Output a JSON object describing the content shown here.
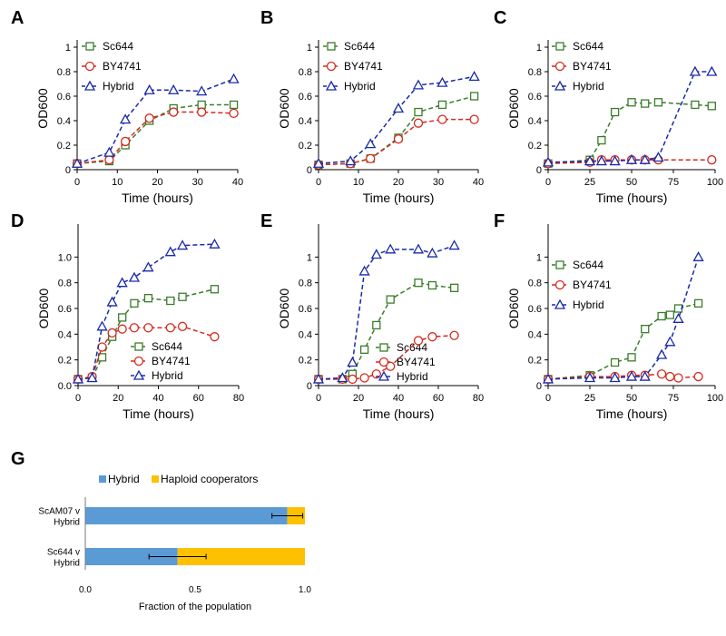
{
  "colors": {
    "Sc644": "#3a7d2a",
    "BY4741": "#d42a1e",
    "Hybrid": "#1a2aa8",
    "bar_hybrid": "#5b9bd5",
    "bar_haploid": "#ffc000"
  },
  "chart_data": [
    {
      "panel": "A",
      "type": "line",
      "xlabel": "Time (hours)",
      "ylabel": "OD600",
      "xlim": [
        0,
        40
      ],
      "xticks": [
        0,
        10,
        20,
        30,
        40
      ],
      "ylim": [
        0,
        1
      ],
      "yticks": [
        "0",
        "0.2",
        "0.4",
        "0.6",
        "0.8",
        "1"
      ],
      "legend_position": "top-left",
      "series": [
        {
          "name": "Sc644",
          "marker": "square",
          "x": [
            0,
            8,
            12,
            18,
            24,
            31,
            39
          ],
          "y": [
            0.05,
            0.07,
            0.2,
            0.4,
            0.5,
            0.53,
            0.53
          ]
        },
        {
          "name": "BY4741",
          "marker": "circle",
          "x": [
            0,
            8,
            12,
            18,
            24,
            31,
            39
          ],
          "y": [
            0.05,
            0.08,
            0.23,
            0.42,
            0.47,
            0.47,
            0.46
          ]
        },
        {
          "name": "Hybrid",
          "marker": "triangle",
          "x": [
            0,
            8,
            12,
            18,
            24,
            31,
            39
          ],
          "y": [
            0.05,
            0.14,
            0.41,
            0.65,
            0.65,
            0.64,
            0.74
          ]
        }
      ]
    },
    {
      "panel": "B",
      "type": "line",
      "xlabel": "Time (hours)",
      "ylabel": "OD600",
      "xlim": [
        0,
        40
      ],
      "xticks": [
        0,
        10,
        20,
        30,
        40
      ],
      "ylim": [
        0,
        1
      ],
      "yticks": [
        "0",
        "0.2",
        "0.4",
        "0.6",
        "0.8",
        "1"
      ],
      "legend_position": "top-left",
      "series": [
        {
          "name": "Sc644",
          "marker": "square",
          "x": [
            0,
            8,
            13,
            20,
            25,
            31,
            39
          ],
          "y": [
            0.04,
            0.05,
            0.09,
            0.26,
            0.47,
            0.53,
            0.6
          ]
        },
        {
          "name": "BY4741",
          "marker": "circle",
          "x": [
            0,
            8,
            13,
            20,
            25,
            31,
            39
          ],
          "y": [
            0.04,
            0.05,
            0.09,
            0.25,
            0.38,
            0.41,
            0.41
          ]
        },
        {
          "name": "Hybrid",
          "marker": "triangle",
          "x": [
            0,
            8,
            13,
            20,
            25,
            31,
            39
          ],
          "y": [
            0.05,
            0.07,
            0.21,
            0.5,
            0.69,
            0.71,
            0.76
          ]
        }
      ]
    },
    {
      "panel": "C",
      "type": "line",
      "xlabel": "Time (hours)",
      "ylabel": "OD600",
      "xlim": [
        0,
        100
      ],
      "xticks": [
        0,
        25,
        50,
        75,
        100
      ],
      "ylim": [
        0,
        1
      ],
      "yticks": [
        "0",
        "0.2",
        "0.4",
        "0.6",
        "0.8",
        "1"
      ],
      "legend_position": "top-left",
      "series": [
        {
          "name": "Sc644",
          "marker": "square",
          "x": [
            0,
            25,
            32,
            40,
            50,
            58,
            66,
            88,
            98
          ],
          "y": [
            0.05,
            0.08,
            0.24,
            0.47,
            0.55,
            0.54,
            0.55,
            0.53,
            0.52
          ]
        },
        {
          "name": "BY4741",
          "marker": "circle",
          "x": [
            0,
            25,
            32,
            40,
            50,
            58,
            66,
            98
          ],
          "y": [
            0.05,
            0.06,
            0.08,
            0.08,
            0.08,
            0.08,
            0.08,
            0.08
          ]
        },
        {
          "name": "Hybrid",
          "marker": "triangle",
          "x": [
            0,
            25,
            32,
            40,
            50,
            58,
            66,
            88,
            98
          ],
          "y": [
            0.06,
            0.07,
            0.07,
            0.07,
            0.08,
            0.08,
            0.1,
            0.8,
            0.8
          ]
        }
      ]
    },
    {
      "panel": "D",
      "type": "line",
      "xlabel": "Time (hours)",
      "ylabel": "OD600",
      "xlim": [
        0,
        80
      ],
      "xticks": [
        0,
        20,
        40,
        60,
        80
      ],
      "ylim": [
        0,
        1.2
      ],
      "yticks": [
        "0.0",
        "0.2",
        "0.4",
        "0.6",
        "0.8",
        "1.0"
      ],
      "legend_position": "bottom-right",
      "series": [
        {
          "name": "Sc644",
          "marker": "square",
          "x": [
            0,
            7,
            12,
            17,
            22,
            28,
            35,
            46,
            52,
            68
          ],
          "y": [
            0.05,
            0.06,
            0.22,
            0.38,
            0.53,
            0.64,
            0.68,
            0.66,
            0.69,
            0.75
          ]
        },
        {
          "name": "BY4741",
          "marker": "circle",
          "x": [
            0,
            7,
            12,
            17,
            22,
            28,
            35,
            46,
            52,
            68
          ],
          "y": [
            0.05,
            0.07,
            0.3,
            0.41,
            0.44,
            0.45,
            0.45,
            0.45,
            0.46,
            0.38
          ]
        },
        {
          "name": "Hybrid",
          "marker": "triangle",
          "x": [
            0,
            7,
            12,
            17,
            22,
            28,
            35,
            46,
            52,
            68
          ],
          "y": [
            0.05,
            0.06,
            0.46,
            0.65,
            0.8,
            0.84,
            0.92,
            1.04,
            1.09,
            1.1
          ]
        }
      ]
    },
    {
      "panel": "E",
      "type": "line",
      "xlabel": "Time (hours)",
      "ylabel": "OD600",
      "xlim": [
        0,
        80
      ],
      "xticks": [
        0,
        20,
        40,
        60,
        80
      ],
      "ylim": [
        0,
        1.2
      ],
      "yticks": [
        "0",
        "0.2",
        "0.4",
        "0.6",
        "0.8",
        "1"
      ],
      "legend_position": "bottom-right",
      "series": [
        {
          "name": "Sc644",
          "marker": "square",
          "x": [
            0,
            12,
            17,
            23,
            29,
            36,
            50,
            57,
            68
          ],
          "y": [
            0.05,
            0.05,
            0.09,
            0.28,
            0.47,
            0.67,
            0.8,
            0.78,
            0.76
          ]
        },
        {
          "name": "BY4741",
          "marker": "circle",
          "x": [
            0,
            12,
            17,
            23,
            29,
            36,
            50,
            57,
            68
          ],
          "y": [
            0.05,
            0.05,
            0.05,
            0.06,
            0.09,
            0.15,
            0.35,
            0.38,
            0.39
          ]
        },
        {
          "name": "Hybrid",
          "marker": "triangle",
          "x": [
            0,
            12,
            17,
            23,
            29,
            36,
            50,
            57,
            68
          ],
          "y": [
            0.05,
            0.06,
            0.18,
            0.89,
            1.02,
            1.06,
            1.06,
            1.03,
            1.09
          ]
        }
      ]
    },
    {
      "panel": "F",
      "type": "line",
      "xlabel": "Time (hours)",
      "ylabel": "OD600",
      "xlim": [
        0,
        100
      ],
      "xticks": [
        0,
        25,
        50,
        75,
        100
      ],
      "ylim": [
        0,
        1.2
      ],
      "yticks": [
        "0",
        "0.2",
        "0.4",
        "0.6",
        "0.8",
        "1"
      ],
      "legend_position": "top-left",
      "series": [
        {
          "name": "Sc644",
          "marker": "square",
          "x": [
            0,
            25,
            40,
            50,
            58,
            68,
            73,
            78,
            90
          ],
          "y": [
            0.05,
            0.08,
            0.18,
            0.22,
            0.44,
            0.54,
            0.55,
            0.6,
            0.64
          ]
        },
        {
          "name": "BY4741",
          "marker": "circle",
          "x": [
            0,
            25,
            40,
            50,
            58,
            68,
            73,
            78,
            90
          ],
          "y": [
            0.05,
            0.07,
            0.07,
            0.08,
            0.08,
            0.09,
            0.07,
            0.06,
            0.07
          ]
        },
        {
          "name": "Hybrid",
          "marker": "triangle",
          "x": [
            0,
            25,
            40,
            50,
            58,
            68,
            73,
            78,
            90
          ],
          "y": [
            0.05,
            0.06,
            0.06,
            0.07,
            0.07,
            0.24,
            0.34,
            0.52,
            1.0
          ]
        }
      ]
    },
    {
      "panel": "G",
      "type": "bar",
      "orientation": "horizontal",
      "stacked": true,
      "xlabel": "Fraction of the population",
      "xlim": [
        0,
        1
      ],
      "xticks": [
        "0.0",
        "0.5",
        "1.0"
      ],
      "legend": [
        "Hybrid",
        "Haploid cooperators"
      ],
      "legend_position": "top",
      "categories": [
        {
          "line1": "ScAM07 v",
          "line2": "Hybrid"
        },
        {
          "line1": "Sc644 v",
          "line2": "Hybrid"
        }
      ],
      "series": [
        {
          "name": "Hybrid",
          "values": [
            0.92,
            0.42
          ],
          "error": [
            0.07,
            0.13
          ]
        },
        {
          "name": "Haploid cooperators",
          "values": [
            0.08,
            0.58
          ]
        }
      ]
    }
  ]
}
